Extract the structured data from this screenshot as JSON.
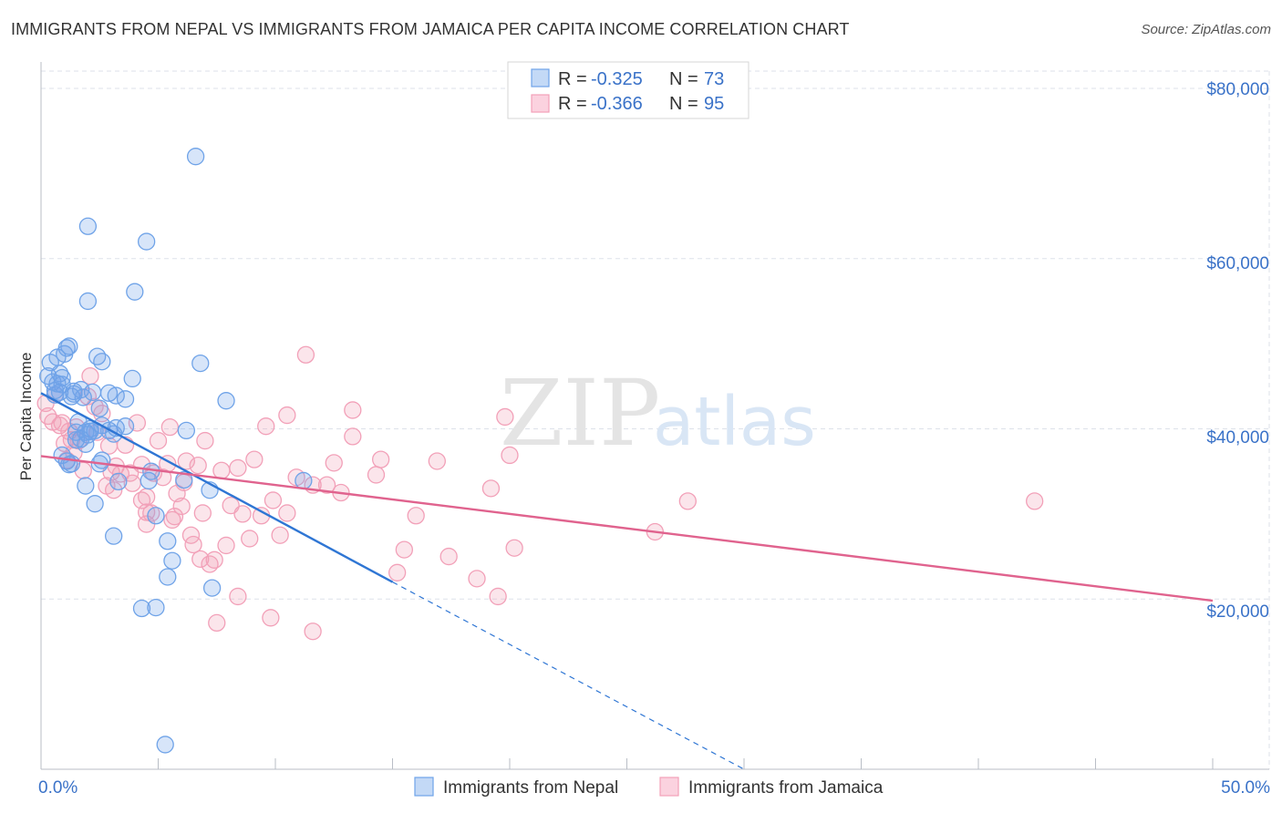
{
  "header": {
    "title": "IMMIGRANTS FROM NEPAL VS IMMIGRANTS FROM JAMAICA PER CAPITA INCOME CORRELATION CHART",
    "source": "Source: ZipAtlas.com"
  },
  "watermark": {
    "zip": "ZIP",
    "atlas": "atlas"
  },
  "colors": {
    "nepal": "#6fa3e8",
    "nepal_line": "#2f76d4",
    "jamaica": "#f2a0b8",
    "jamaica_line": "#e0638e",
    "axis_text": "#3a72c8",
    "grid": "#dde2ea"
  },
  "legend": {
    "rows": [
      {
        "series": "Immigrants from Nepal",
        "r_label": "R =",
        "r_value": "-0.325",
        "n_label": "N =",
        "n_value": "73"
      },
      {
        "series": "Immigrants from Jamaica",
        "r_label": "R =",
        "r_value": "-0.366",
        "n_label": "N =",
        "n_value": "95"
      }
    ]
  },
  "chart_data": {
    "type": "scatter",
    "title": "IMMIGRANTS FROM NEPAL VS IMMIGRANTS FROM JAMAICA PER CAPITA INCOME CORRELATION CHART",
    "xlabel": "",
    "ylabel": "Per Capita Income",
    "xlim": [
      0,
      50
    ],
    "ylim": [
      0,
      80000
    ],
    "x_tick_labels": [
      "0.0%",
      "50.0%"
    ],
    "y_ticks": [
      20000,
      40000,
      60000,
      80000
    ],
    "y_tick_labels": [
      "$20,000",
      "$40,000",
      "$60,000",
      "$80,000"
    ],
    "grid": true,
    "legend_position": "top-center",
    "series": [
      {
        "name": "Immigrants from Nepal",
        "r": -0.325,
        "n": 73,
        "trend": {
          "x_start": 0,
          "y_start": 44200,
          "x_solid_end": 15.0,
          "y_solid_end": 22000,
          "x_dash_end": 30.0,
          "y_dash_end": 0
        },
        "points": [
          [
            0.3,
            46200
          ],
          [
            0.4,
            47800
          ],
          [
            0.5,
            45500
          ],
          [
            0.6,
            44000
          ],
          [
            0.7,
            48400
          ],
          [
            0.8,
            46500
          ],
          [
            0.9,
            45200
          ],
          [
            1.0,
            48800
          ],
          [
            1.1,
            49500
          ],
          [
            1.2,
            49700
          ],
          [
            0.6,
            44500
          ],
          [
            1.3,
            43800
          ],
          [
            1.4,
            44400
          ],
          [
            1.7,
            44600
          ],
          [
            1.8,
            43700
          ],
          [
            2.4,
            48500
          ],
          [
            2.6,
            47900
          ],
          [
            2.9,
            44200
          ],
          [
            3.2,
            43900
          ],
          [
            3.6,
            43500
          ],
          [
            1.6,
            40800
          ],
          [
            1.9,
            39600
          ],
          [
            2.1,
            40000
          ],
          [
            2.3,
            39800
          ],
          [
            2.6,
            40400
          ],
          [
            2.9,
            39800
          ],
          [
            3.2,
            40100
          ],
          [
            3.6,
            40300
          ],
          [
            1.5,
            38700
          ],
          [
            1.7,
            38800
          ],
          [
            2.0,
            39300
          ],
          [
            1.9,
            38200
          ],
          [
            0.9,
            36900
          ],
          [
            1.1,
            36200
          ],
          [
            1.2,
            35800
          ],
          [
            1.3,
            35900
          ],
          [
            2.5,
            35900
          ],
          [
            2.6,
            36300
          ],
          [
            1.9,
            33300
          ],
          [
            2.3,
            31200
          ],
          [
            3.3,
            33800
          ],
          [
            4.6,
            33900
          ],
          [
            4.7,
            35000
          ],
          [
            6.1,
            34000
          ],
          [
            7.2,
            32800
          ],
          [
            11.2,
            33900
          ],
          [
            3.1,
            27400
          ],
          [
            5.4,
            26800
          ],
          [
            5.6,
            24500
          ],
          [
            5.4,
            22600
          ],
          [
            4.3,
            18900
          ],
          [
            4.9,
            19000
          ],
          [
            7.3,
            21300
          ],
          [
            5.3,
            2900
          ],
          [
            2.0,
            63800
          ],
          [
            4.5,
            62000
          ],
          [
            6.6,
            72000
          ],
          [
            2.0,
            55000
          ],
          [
            4.0,
            56100
          ],
          [
            3.9,
            45900
          ],
          [
            6.8,
            47700
          ],
          [
            7.9,
            43300
          ],
          [
            6.2,
            39800
          ],
          [
            4.9,
            29800
          ],
          [
            2.1,
            39700
          ],
          [
            0.8,
            44300
          ],
          [
            1.4,
            44100
          ],
          [
            2.5,
            42400
          ],
          [
            0.9,
            46000
          ],
          [
            0.7,
            45300
          ],
          [
            1.5,
            39600
          ],
          [
            2.2,
            44300
          ],
          [
            3.1,
            39400
          ]
        ]
      },
      {
        "name": "Immigrants from Jamaica",
        "r": -0.366,
        "n": 95,
        "trend": {
          "x_start": 0,
          "y_start": 36800,
          "x_end": 50,
          "y_end": 19800
        },
        "points": [
          [
            0.2,
            43000
          ],
          [
            0.3,
            41500
          ],
          [
            0.5,
            40800
          ],
          [
            0.6,
            44000
          ],
          [
            0.8,
            40400
          ],
          [
            0.9,
            40700
          ],
          [
            1.0,
            38300
          ],
          [
            1.2,
            39700
          ],
          [
            1.3,
            38700
          ],
          [
            1.4,
            37200
          ],
          [
            1.5,
            40200
          ],
          [
            1.6,
            38600
          ],
          [
            1.8,
            35100
          ],
          [
            2.0,
            43800
          ],
          [
            2.1,
            46200
          ],
          [
            2.3,
            42600
          ],
          [
            2.4,
            39600
          ],
          [
            2.6,
            41800
          ],
          [
            2.8,
            33300
          ],
          [
            3.0,
            34900
          ],
          [
            3.1,
            32800
          ],
          [
            3.2,
            35600
          ],
          [
            3.4,
            34700
          ],
          [
            3.6,
            38100
          ],
          [
            3.8,
            34800
          ],
          [
            3.9,
            33600
          ],
          [
            4.1,
            40700
          ],
          [
            4.3,
            31600
          ],
          [
            4.3,
            35800
          ],
          [
            4.5,
            30200
          ],
          [
            4.5,
            28800
          ],
          [
            4.7,
            30100
          ],
          [
            4.8,
            34800
          ],
          [
            5.0,
            38600
          ],
          [
            5.2,
            34300
          ],
          [
            5.4,
            35900
          ],
          [
            5.5,
            40200
          ],
          [
            5.6,
            29300
          ],
          [
            5.7,
            29700
          ],
          [
            6.0,
            30900
          ],
          [
            6.1,
            33700
          ],
          [
            6.2,
            36200
          ],
          [
            6.4,
            27500
          ],
          [
            6.5,
            26400
          ],
          [
            6.7,
            35700
          ],
          [
            6.8,
            24700
          ],
          [
            7.0,
            38600
          ],
          [
            7.2,
            24100
          ],
          [
            7.4,
            24600
          ],
          [
            7.7,
            35100
          ],
          [
            7.9,
            26300
          ],
          [
            8.1,
            31000
          ],
          [
            8.4,
            35400
          ],
          [
            8.6,
            30000
          ],
          [
            8.9,
            27100
          ],
          [
            9.1,
            36400
          ],
          [
            9.4,
            29800
          ],
          [
            9.6,
            40300
          ],
          [
            9.9,
            31600
          ],
          [
            10.2,
            27500
          ],
          [
            10.5,
            41600
          ],
          [
            10.9,
            34300
          ],
          [
            11.3,
            48700
          ],
          [
            11.6,
            33400
          ],
          [
            12.2,
            33400
          ],
          [
            12.5,
            36000
          ],
          [
            12.8,
            32500
          ],
          [
            13.3,
            42200
          ],
          [
            13.3,
            39100
          ],
          [
            14.3,
            34600
          ],
          [
            14.5,
            36400
          ],
          [
            15.5,
            25800
          ],
          [
            16.0,
            29800
          ],
          [
            16.9,
            36200
          ],
          [
            17.4,
            25000
          ],
          [
            18.6,
            22400
          ],
          [
            19.2,
            33000
          ],
          [
            19.5,
            20300
          ],
          [
            19.8,
            41400
          ],
          [
            20.0,
            36900
          ],
          [
            20.2,
            26000
          ],
          [
            26.2,
            27900
          ],
          [
            27.6,
            31500
          ],
          [
            42.4,
            31500
          ],
          [
            7.5,
            17200
          ],
          [
            8.4,
            20300
          ],
          [
            9.8,
            17800
          ],
          [
            11.6,
            16200
          ],
          [
            4.5,
            32000
          ],
          [
            6.9,
            30100
          ],
          [
            2.9,
            38000
          ],
          [
            5.8,
            32400
          ],
          [
            10.5,
            30100
          ],
          [
            1.1,
            36300
          ],
          [
            15.2,
            23100
          ]
        ]
      }
    ]
  },
  "bottom_legend": {
    "items": [
      {
        "label": "Immigrants from Nepal"
      },
      {
        "label": "Immigrants from Jamaica"
      }
    ]
  }
}
